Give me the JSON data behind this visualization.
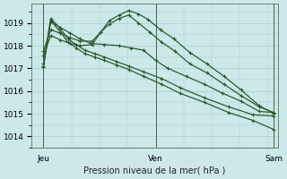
{
  "title": "Pression niveau de la mer( hPa )",
  "bg_color": "#cce8e8",
  "grid_color": "#aacece",
  "line_color": "#2d5a2d",
  "xtick_labels": [
    "Jeu",
    "Ven",
    "Sam"
  ],
  "ylim": [
    1013.5,
    1019.85
  ],
  "yticks": [
    1014,
    1015,
    1016,
    1017,
    1018,
    1019
  ],
  "marker": "+",
  "markersize": 3.5,
  "linewidth": 0.9,
  "series": [
    {
      "xs": [
        0.08,
        0.14,
        0.22,
        0.3,
        0.38,
        0.47,
        0.58,
        0.7,
        0.8,
        0.9,
        1.0,
        1.1,
        1.25,
        1.4,
        1.55,
        1.7,
        1.85,
        1.97
      ],
      "ys": [
        1017.1,
        1019.05,
        1018.8,
        1018.55,
        1018.3,
        1018.1,
        1018.05,
        1018.0,
        1017.9,
        1017.8,
        1017.35,
        1017.0,
        1016.65,
        1016.3,
        1015.9,
        1015.55,
        1015.1,
        1015.05
      ]
    },
    {
      "xs": [
        0.08,
        0.14,
        0.22,
        0.3,
        0.38,
        0.48,
        0.55,
        0.62,
        0.7,
        0.78,
        0.86,
        0.94,
        1.04,
        1.15,
        1.28,
        1.42,
        1.56,
        1.7,
        1.85,
        1.97
      ],
      "ys": [
        1017.55,
        1018.45,
        1018.25,
        1018.1,
        1018.0,
        1018.05,
        1018.6,
        1019.1,
        1019.35,
        1019.55,
        1019.4,
        1019.15,
        1018.7,
        1018.3,
        1017.7,
        1017.2,
        1016.65,
        1016.05,
        1015.35,
        1015.0
      ]
    },
    {
      "xs": [
        0.08,
        0.14,
        0.22,
        0.3,
        0.38,
        0.48,
        0.55,
        0.62,
        0.7,
        0.78,
        0.86,
        0.95,
        1.05,
        1.16,
        1.28,
        1.42,
        1.56,
        1.7,
        1.85,
        1.97
      ],
      "ys": [
        1017.75,
        1018.7,
        1018.55,
        1018.35,
        1018.2,
        1018.2,
        1018.6,
        1018.95,
        1019.2,
        1019.35,
        1019.0,
        1018.6,
        1018.15,
        1017.75,
        1017.2,
        1016.8,
        1016.3,
        1015.8,
        1015.3,
        1015.05
      ]
    },
    {
      "xs": [
        0.08,
        0.14,
        0.22,
        0.28,
        0.35,
        0.42,
        0.5,
        0.58,
        0.68,
        0.78,
        0.9,
        1.05,
        1.2,
        1.4,
        1.6,
        1.8,
        1.97
      ],
      "ys": [
        1017.2,
        1019.2,
        1018.75,
        1018.3,
        1018.05,
        1017.8,
        1017.65,
        1017.5,
        1017.3,
        1017.1,
        1016.85,
        1016.55,
        1016.15,
        1015.7,
        1015.3,
        1014.95,
        1014.9
      ]
    },
    {
      "xs": [
        0.08,
        0.14,
        0.22,
        0.28,
        0.35,
        0.42,
        0.5,
        0.58,
        0.68,
        0.78,
        0.9,
        1.05,
        1.2,
        1.4,
        1.6,
        1.8,
        1.97
      ],
      "ys": [
        1017.05,
        1019.1,
        1018.6,
        1018.15,
        1017.9,
        1017.65,
        1017.5,
        1017.35,
        1017.15,
        1016.95,
        1016.65,
        1016.3,
        1015.9,
        1015.5,
        1015.05,
        1014.7,
        1014.3
      ]
    }
  ],
  "vline_x": [
    0.08,
    1.0,
    1.97
  ],
  "vline_color": "#446644"
}
